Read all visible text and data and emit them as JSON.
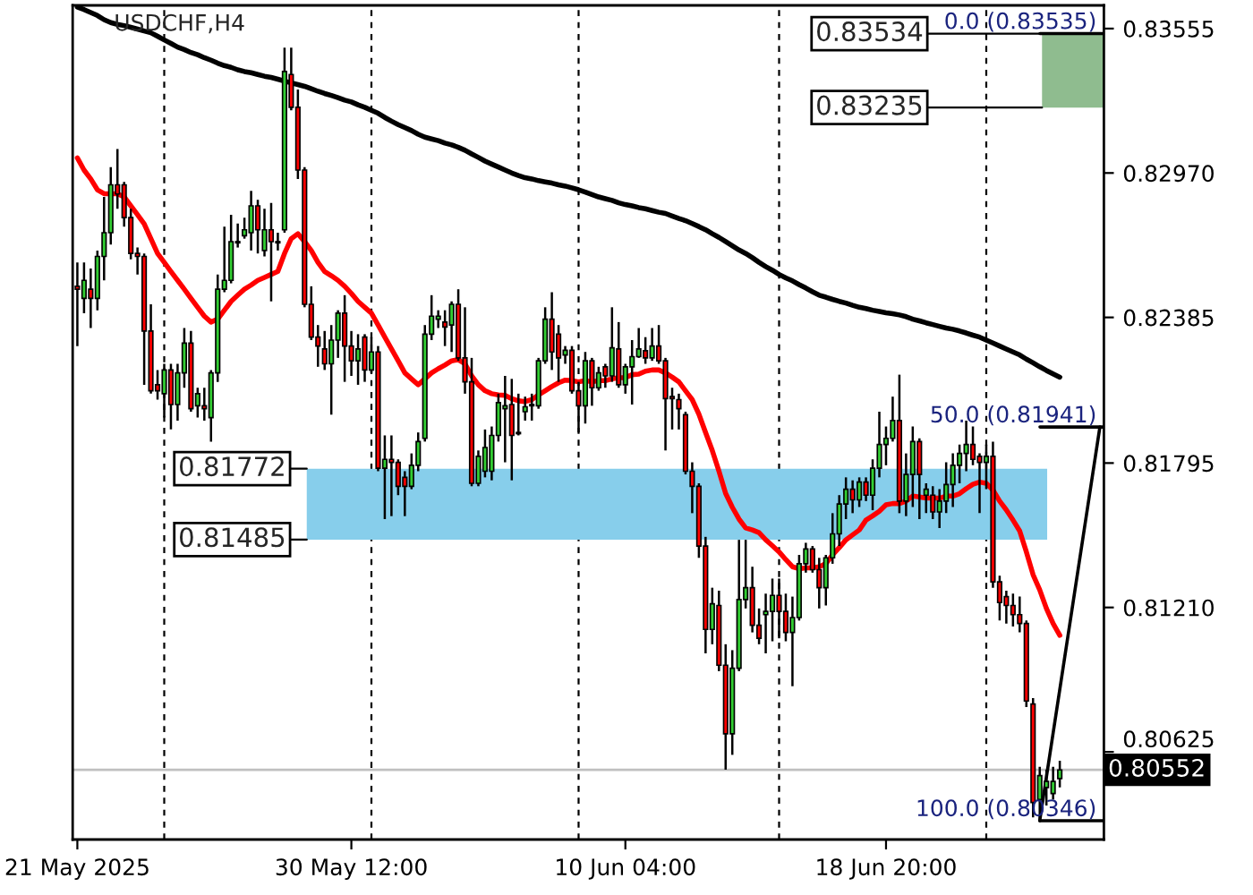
{
  "chart_data": {
    "type": "candlestick",
    "title": "USDCHF,H4",
    "categories": [
      "21 May 2025",
      null,
      null,
      null,
      null,
      null,
      null,
      null,
      null,
      null,
      null,
      null,
      null,
      null,
      null,
      null,
      null,
      null,
      null,
      null,
      null,
      null,
      null,
      null,
      null,
      null,
      null,
      null,
      null,
      null,
      null,
      null,
      null,
      null,
      null,
      null,
      null,
      null,
      null,
      null,
      null,
      "30 May 12:00",
      null,
      null,
      null,
      null,
      null,
      null,
      null,
      null,
      null,
      null,
      null,
      null,
      null,
      null,
      null,
      null,
      null,
      null,
      null,
      null,
      null,
      null,
      null,
      null,
      null,
      null,
      null,
      null,
      null,
      null,
      null,
      null,
      null,
      null,
      null,
      null,
      null,
      null,
      null,
      null,
      "10 Jun 04:00",
      null,
      null,
      null,
      null,
      null,
      null,
      null,
      null,
      null,
      null,
      null,
      null,
      null,
      null,
      null,
      null,
      null,
      null,
      null,
      null,
      null,
      null,
      null,
      null,
      null,
      null,
      null,
      null,
      null,
      null,
      null,
      null,
      null,
      null,
      null,
      null,
      null,
      null,
      "18 Jun 20:00",
      null,
      null,
      null,
      null,
      null,
      null,
      null,
      null,
      null,
      null,
      null,
      null,
      null,
      null,
      null,
      null,
      null,
      null,
      null,
      null,
      null,
      null,
      null,
      null,
      null,
      null,
      null,
      null,
      null,
      null,
      null,
      null
    ],
    "ohlc": [
      [
        0.82511,
        0.82608,
        0.82269,
        0.82499
      ],
      [
        0.82462,
        0.82608,
        0.82402,
        0.82535
      ],
      [
        0.82499,
        0.82583,
        0.82342,
        0.82462
      ],
      [
        0.82462,
        0.82656,
        0.82414,
        0.82632
      ],
      [
        0.82632,
        0.82873,
        0.82535,
        0.82728
      ],
      [
        0.82728,
        0.82994,
        0.8268,
        0.82922
      ],
      [
        0.82922,
        0.83067,
        0.82825,
        0.82885
      ],
      [
        0.82922,
        0.82934,
        0.82753,
        0.82789
      ],
      [
        0.82789,
        0.82825,
        0.8262,
        0.82644
      ],
      [
        0.82644,
        0.82668,
        0.82559,
        0.82632
      ],
      [
        0.82632,
        0.82644,
        0.82112,
        0.8233
      ],
      [
        0.8233,
        0.82438,
        0.82076,
        0.82088
      ],
      [
        0.82112,
        0.82172,
        0.82052,
        0.82088
      ],
      [
        0.82076,
        0.82197,
        0.81979,
        0.82172
      ],
      [
        0.82172,
        0.82197,
        0.81931,
        0.82032
      ],
      [
        0.82032,
        0.82197,
        0.81967,
        0.8216
      ],
      [
        0.8216,
        0.82342,
        0.821,
        0.82281
      ],
      [
        0.82281,
        0.8233,
        0.82003,
        0.82015
      ],
      [
        0.82027,
        0.821,
        0.81979,
        0.82076
      ],
      [
        0.82027,
        0.821,
        0.81967,
        0.82015
      ],
      [
        0.81979,
        0.82172,
        0.81882,
        0.8216
      ],
      [
        0.8216,
        0.82559,
        0.82124,
        0.82499
      ],
      [
        0.82499,
        0.82753,
        0.82487,
        0.82535
      ],
      [
        0.82535,
        0.82801,
        0.82523,
        0.82692
      ],
      [
        0.82692,
        0.82765,
        0.82668,
        0.82687
      ],
      [
        0.82716,
        0.82789,
        0.82704,
        0.8274
      ],
      [
        0.82728,
        0.82898,
        0.82656,
        0.82837
      ],
      [
        0.82837,
        0.82861,
        0.82644,
        0.8274
      ],
      [
        0.82656,
        0.82825,
        0.82632,
        0.8274
      ],
      [
        0.8274,
        0.82849,
        0.8245,
        0.82692
      ],
      [
        0.82692,
        0.82728,
        0.82656,
        0.82687
      ],
      [
        0.8274,
        0.83478,
        0.82728,
        0.83381
      ],
      [
        0.83369,
        0.83478,
        0.83224,
        0.83236
      ],
      [
        0.83236,
        0.83308,
        0.82946,
        0.82982
      ],
      [
        0.82982,
        0.82994,
        0.82426,
        0.82438
      ],
      [
        0.82438,
        0.82511,
        0.82293,
        0.82305
      ],
      [
        0.82305,
        0.82354,
        0.82185,
        0.82269
      ],
      [
        0.82257,
        0.8233,
        0.82172,
        0.82197
      ],
      [
        0.82197,
        0.82354,
        0.81991,
        0.82293
      ],
      [
        0.82293,
        0.82414,
        0.82221,
        0.82402
      ],
      [
        0.82402,
        0.82475,
        0.82124,
        0.82269
      ],
      [
        0.82269,
        0.8233,
        0.82148,
        0.82209
      ],
      [
        0.82209,
        0.82317,
        0.82112,
        0.82257
      ],
      [
        0.82305,
        0.82317,
        0.82124,
        0.82172
      ],
      [
        0.82172,
        0.82305,
        0.8216,
        0.82245
      ],
      [
        0.82245,
        0.82269,
        0.81762,
        0.81774
      ],
      [
        0.81774,
        0.81907,
        0.81568,
        0.8181
      ],
      [
        0.8181,
        0.81907,
        0.8158,
        0.81798
      ],
      [
        0.81798,
        0.8181,
        0.81665,
        0.81701
      ],
      [
        0.81737,
        0.81762,
        0.8158,
        0.81701
      ],
      [
        0.81701,
        0.81834,
        0.81689,
        0.81786
      ],
      [
        0.81786,
        0.81919,
        0.81762,
        0.81882
      ],
      [
        0.81895,
        0.82354,
        0.81882,
        0.82317
      ],
      [
        0.82317,
        0.82475,
        0.82293,
        0.8239
      ],
      [
        0.82378,
        0.82414,
        0.82342,
        0.8239
      ],
      [
        0.82366,
        0.82414,
        0.82269,
        0.82346
      ],
      [
        0.82354,
        0.8245,
        0.82245,
        0.82438
      ],
      [
        0.82438,
        0.82499,
        0.82209,
        0.82221
      ],
      [
        0.82221,
        0.82426,
        0.82076,
        0.82124
      ],
      [
        0.82124,
        0.82221,
        0.81701,
        0.81713
      ],
      [
        0.81713,
        0.81846,
        0.81701,
        0.81822
      ],
      [
        0.81762,
        0.81931,
        0.81737,
        0.81858
      ],
      [
        0.81762,
        0.81943,
        0.81725,
        0.81907
      ],
      [
        0.81907,
        0.82076,
        0.81882,
        0.8204
      ],
      [
        0.82015,
        0.82148,
        0.81798,
        0.82027
      ],
      [
        0.82032,
        0.82136,
        0.81725,
        0.81907
      ],
      [
        0.81919,
        0.82076,
        0.81907,
        0.81914
      ],
      [
        0.82003,
        0.82064,
        0.81967,
        0.82023
      ],
      [
        0.82027,
        0.82076,
        0.81967,
        0.82032
      ],
      [
        0.82027,
        0.82221,
        0.82015,
        0.82209
      ],
      [
        0.82209,
        0.82426,
        0.82197,
        0.82378
      ],
      [
        0.82378,
        0.82487,
        0.82172,
        0.82245
      ],
      [
        0.82317,
        0.82354,
        0.82124,
        0.82221
      ],
      [
        0.82233,
        0.82269,
        0.82197,
        0.82252
      ],
      [
        0.82252,
        0.82269,
        0.82076,
        0.82088
      ],
      [
        0.82088,
        0.82124,
        0.81919,
        0.82027
      ],
      [
        0.82027,
        0.82245,
        0.81955,
        0.82209
      ],
      [
        0.82209,
        0.82221,
        0.82027,
        0.821
      ],
      [
        0.821,
        0.82185,
        0.82088,
        0.8216
      ],
      [
        0.82185,
        0.82197,
        0.821,
        0.82148
      ],
      [
        0.82148,
        0.82426,
        0.82124,
        0.82262
      ],
      [
        0.82257,
        0.82366,
        0.821,
        0.82112
      ],
      [
        0.82112,
        0.82197,
        0.82076,
        0.82185
      ],
      [
        0.82185,
        0.82293,
        0.82032,
        0.82226
      ],
      [
        0.82226,
        0.82342,
        0.82221,
        0.82257
      ],
      [
        0.8225,
        0.82305,
        0.82197,
        0.82221
      ],
      [
        0.82221,
        0.82342,
        0.82209,
        0.82269
      ],
      [
        0.82269,
        0.82354,
        0.82197,
        0.82209
      ],
      [
        0.82209,
        0.82221,
        0.81846,
        0.82056
      ],
      [
        0.82064,
        0.821,
        0.81931,
        0.82056
      ],
      [
        0.82052,
        0.82076,
        0.81931,
        0.82015
      ],
      [
        0.81991,
        0.82003,
        0.81749,
        0.81762
      ],
      [
        0.81762,
        0.81798,
        0.81592,
        0.81701
      ],
      [
        0.81701,
        0.81713,
        0.81411,
        0.81459
      ],
      [
        0.81459,
        0.81496,
        0.81024,
        0.81121
      ],
      [
        0.81121,
        0.8129,
        0.81061,
        0.81225
      ],
      [
        0.81218,
        0.81278,
        0.80952,
        0.80976
      ],
      [
        0.80976,
        0.81061,
        0.80553,
        0.80698
      ],
      [
        0.80698,
        0.81037,
        0.80613,
        0.80964
      ],
      [
        0.80964,
        0.81484,
        0.80952,
        0.81242
      ],
      [
        0.81242,
        0.81484,
        0.81206,
        0.8129
      ],
      [
        0.8129,
        0.81375,
        0.81109,
        0.81138
      ],
      [
        0.81138,
        0.81206,
        0.81061,
        0.81085
      ],
      [
        0.81181,
        0.81266,
        0.81024,
        0.81194
      ],
      [
        0.81194,
        0.81327,
        0.81073,
        0.81259
      ],
      [
        0.81259,
        0.81327,
        0.81085,
        0.81194
      ],
      [
        0.81194,
        0.81266,
        0.81073,
        0.81109
      ],
      [
        0.81109,
        0.81254,
        0.80891,
        0.81169
      ],
      [
        0.81169,
        0.81423,
        0.81157,
        0.81387
      ],
      [
        0.81387,
        0.81472,
        0.81351,
        0.81447
      ],
      [
        0.81447,
        0.81459,
        0.81351,
        0.81363
      ],
      [
        0.81363,
        0.81411,
        0.81206,
        0.8129
      ],
      [
        0.8129,
        0.81423,
        0.81218,
        0.81411
      ],
      [
        0.81411,
        0.81592,
        0.81387,
        0.81508
      ],
      [
        0.81508,
        0.81665,
        0.81459,
        0.81629
      ],
      [
        0.81629,
        0.81737,
        0.81568,
        0.81689
      ],
      [
        0.81689,
        0.81725,
        0.81592,
        0.81646
      ],
      [
        0.81646,
        0.81737,
        0.81617,
        0.81718
      ],
      [
        0.81718,
        0.81737,
        0.81641,
        0.81665
      ],
      [
        0.81665,
        0.8181,
        0.81604,
        0.81774
      ],
      [
        0.81774,
        0.82003,
        0.81737,
        0.8187
      ],
      [
        0.8187,
        0.81943,
        0.81786,
        0.81895
      ],
      [
        0.81895,
        0.82064,
        0.81882,
        0.81967
      ],
      [
        0.81967,
        0.82153,
        0.81592,
        0.81641
      ],
      [
        0.81641,
        0.81834,
        0.8158,
        0.81749
      ],
      [
        0.81749,
        0.81943,
        0.81617,
        0.81882
      ],
      [
        0.81882,
        0.81895,
        0.81568,
        0.81749
      ],
      [
        0.81665,
        0.81713,
        0.81592,
        0.81689
      ],
      [
        0.81665,
        0.81701,
        0.81568,
        0.81597
      ],
      [
        0.81597,
        0.81689,
        0.81532,
        0.81641
      ],
      [
        0.81641,
        0.81798,
        0.81592,
        0.81708
      ],
      [
        0.81708,
        0.81834,
        0.81617,
        0.81786
      ],
      [
        0.81786,
        0.8187,
        0.81713,
        0.81834
      ],
      [
        0.81834,
        0.81967,
        0.81762,
        0.8187
      ],
      [
        0.8187,
        0.81943,
        0.81786,
        0.8181
      ],
      [
        0.81822,
        0.81834,
        0.81592,
        0.81798
      ],
      [
        0.81798,
        0.8187,
        0.81689,
        0.81822
      ],
      [
        0.81822,
        0.81882,
        0.8129,
        0.81314
      ],
      [
        0.81314,
        0.81339,
        0.81157,
        0.8123
      ],
      [
        0.81254,
        0.81278,
        0.81145,
        0.81218
      ],
      [
        0.81218,
        0.81266,
        0.81133,
        0.81181
      ],
      [
        0.81181,
        0.81254,
        0.81109,
        0.81145
      ],
      [
        0.81145,
        0.81157,
        0.80807,
        0.80831
      ],
      [
        0.80819,
        0.80843,
        0.8036,
        0.8042
      ],
      [
        0.80432,
        0.80565,
        0.80346,
        0.80529
      ],
      [
        0.80481,
        0.80553,
        0.80408,
        0.80505
      ],
      [
        0.80456,
        0.80565,
        0.80432,
        0.80505
      ],
      [
        0.80517,
        0.80589,
        0.80481,
        0.80552
      ],
      null,
      null,
      null,
      null,
      null,
      null
    ],
    "series": [
      {
        "type": "line",
        "color": "#ff0000",
        "values": [
          0.83031,
          0.82982,
          0.82946,
          0.82902,
          0.82886,
          0.82886,
          0.82886,
          0.82873,
          0.82837,
          0.82801,
          0.82764,
          0.82704,
          0.82644,
          0.82608,
          0.82571,
          0.82535,
          0.82499,
          0.82462,
          0.82426,
          0.8239,
          0.82366,
          0.82378,
          0.82414,
          0.8245,
          0.82475,
          0.82499,
          0.82516,
          0.82535,
          0.82547,
          0.82559,
          0.82571,
          0.82644,
          0.82704,
          0.82724,
          0.82692,
          0.82656,
          0.82608,
          0.82571,
          0.82554,
          0.82535,
          0.82511,
          0.82482,
          0.8245,
          0.82426,
          0.82402,
          0.82354,
          0.82305,
          0.82257,
          0.82209,
          0.8216,
          0.82136,
          0.82112,
          0.82136,
          0.8216,
          0.82177,
          0.82192,
          0.82209,
          0.82214,
          0.82197,
          0.82148,
          0.82112,
          0.82088,
          0.82076,
          0.82071,
          0.82069,
          0.82056,
          0.82047,
          0.82044,
          0.82052,
          0.82071,
          0.82088,
          0.82105,
          0.8212,
          0.82131,
          0.82129,
          0.82124,
          0.82129,
          0.82124,
          0.82129,
          0.82129,
          0.82136,
          0.82141,
          0.82141,
          0.82153,
          0.82155,
          0.82167,
          0.82172,
          0.82172,
          0.8216,
          0.82143,
          0.82124,
          0.82088,
          0.82052,
          0.81993,
          0.81919,
          0.81846,
          0.81762,
          0.81672,
          0.81616,
          0.81568,
          0.81532,
          0.81524,
          0.81513,
          0.81484,
          0.8146,
          0.81435,
          0.81404,
          0.81375,
          0.81367,
          0.8137,
          0.8137,
          0.81375,
          0.81387,
          0.81423,
          0.81452,
          0.81484,
          0.81504,
          0.81524,
          0.81564,
          0.81581,
          0.816,
          0.81626,
          0.81631,
          0.81631,
          0.81641,
          0.81661,
          0.81658,
          0.81653,
          0.81653,
          0.81653,
          0.81661,
          0.81661,
          0.81671,
          0.81691,
          0.81709,
          0.81718,
          0.81713,
          0.81686,
          0.81641,
          0.81605,
          0.81564,
          0.8152,
          0.81435,
          0.81343,
          0.81281,
          0.81206,
          0.81145,
          0.81097,
          null,
          null,
          null,
          null,
          null,
          null
        ]
      },
      {
        "type": "line",
        "color": "#000000",
        "values": [
          0.83642,
          0.83632,
          0.8362,
          0.83608,
          0.83591,
          0.83579,
          0.83572,
          0.83567,
          0.8356,
          0.83553,
          0.83545,
          0.83538,
          0.83524,
          0.83509,
          0.83495,
          0.8348,
          0.8347,
          0.83458,
          0.83449,
          0.83437,
          0.83427,
          0.83415,
          0.83405,
          0.83398,
          0.83388,
          0.83381,
          0.83376,
          0.83369,
          0.83362,
          0.83357,
          0.8335,
          0.83342,
          0.83335,
          0.83328,
          0.83321,
          0.83311,
          0.83301,
          0.83292,
          0.83284,
          0.83275,
          0.83265,
          0.83258,
          0.83246,
          0.83236,
          0.83224,
          0.83212,
          0.83195,
          0.8318,
          0.83166,
          0.83154,
          0.83142,
          0.83127,
          0.83115,
          0.83108,
          0.83101,
          0.83091,
          0.83084,
          0.83074,
          0.83062,
          0.83047,
          0.83033,
          0.83018,
          0.83006,
          0.82994,
          0.82982,
          0.8297,
          0.8296,
          0.82951,
          0.82946,
          0.82939,
          0.82934,
          0.82929,
          0.82922,
          0.82917,
          0.8291,
          0.82902,
          0.82893,
          0.82883,
          0.82873,
          0.82866,
          0.82859,
          0.82849,
          0.82842,
          0.82837,
          0.8283,
          0.82825,
          0.82818,
          0.82811,
          0.82806,
          0.82796,
          0.82786,
          0.82777,
          0.82765,
          0.82753,
          0.8274,
          0.82724,
          0.82709,
          0.82692,
          0.82675,
          0.82658,
          0.82644,
          0.82627,
          0.82608,
          0.82591,
          0.82576,
          0.82559,
          0.82545,
          0.82533,
          0.82518,
          0.82504,
          0.82489,
          0.82475,
          0.82467,
          0.82458,
          0.8245,
          0.82443,
          0.82434,
          0.82426,
          0.82421,
          0.82414,
          0.82409,
          0.82404,
          0.824,
          0.82395,
          0.82388,
          0.82378,
          0.82371,
          0.82363,
          0.82356,
          0.82349,
          0.82342,
          0.82337,
          0.8233,
          0.82322,
          0.82313,
          0.82305,
          0.82293,
          0.82281,
          0.82269,
          0.82257,
          0.82245,
          0.82233,
          0.82216,
          0.82201,
          0.82185,
          0.8217,
          0.82156,
          0.82143,
          null,
          null,
          null,
          null,
          null,
          null
        ]
      },
      {
        "type": "line",
        "color": "#000000",
        "values": [
          null,
          null,
          null,
          null,
          null,
          null,
          null,
          null,
          null,
          null,
          null,
          null,
          null,
          null,
          null,
          null,
          null,
          null,
          null,
          null,
          null,
          null,
          null,
          null,
          null,
          null,
          null,
          null,
          null,
          null,
          null,
          null,
          null,
          null,
          null,
          null,
          null,
          null,
          null,
          null,
          null,
          null,
          null,
          null,
          null,
          null,
          null,
          null,
          null,
          null,
          null,
          null,
          null,
          null,
          null,
          null,
          null,
          null,
          null,
          null,
          null,
          null,
          null,
          null,
          null,
          null,
          null,
          null,
          null,
          null,
          null,
          null,
          null,
          null,
          null,
          null,
          null,
          null,
          null,
          null,
          null,
          null,
          null,
          null,
          null,
          null,
          null,
          null,
          null,
          null,
          null,
          null,
          null,
          null,
          null,
          null,
          null,
          null,
          null,
          null,
          null,
          null,
          null,
          null,
          null,
          null,
          null,
          null,
          null,
          null,
          null,
          null,
          null,
          null,
          null,
          null,
          null,
          null,
          null,
          null,
          null,
          null,
          null,
          null,
          null,
          null,
          null,
          null,
          null,
          null,
          null,
          null,
          null,
          null,
          null,
          null,
          null,
          null,
          null,
          null,
          null,
          null,
          null,
          null,
          0.80346,
          null,
          null,
          null,
          null,
          null,
          null,
          null,
          null,
          0.81941
        ]
      }
    ],
    "ylim": [
      0.8027,
      0.83649
    ],
    "yticks": [
      0.83555,
      {
        "value": 0.8297,
        "label": "0.82970"
      },
      0.82385,
      0.81795,
      {
        "value": 0.8121,
        "label": "0.81210"
      },
      0.80625
    ],
    "ref_lines": [
      {
        "axis": "y",
        "value": 0.80552,
        "label": "0.80552",
        "color": "#c0c0c0"
      },
      {
        "axis": "y",
        "value": 0.83535,
        "label": "0.0 (0.83535)",
        "color": "#000000"
      },
      {
        "axis": "y",
        "value": 0.81941,
        "label": "50.0 (0.81941)",
        "color": "#000000"
      },
      {
        "axis": "y",
        "value": 0.80346,
        "label": "100.0 (0.80346)",
        "color": "#000000"
      }
    ],
    "bands": [
      {
        "axis": "y",
        "from": 0.81485,
        "to": 0.81772,
        "color": "#87ceeb"
      },
      {
        "axis": "y",
        "from": 0.83235,
        "to": 0.83534,
        "color": "#8fbc8f"
      }
    ],
    "annotations": [
      "0.81772",
      "0.81485",
      "0.83534",
      "0.83235"
    ]
  }
}
